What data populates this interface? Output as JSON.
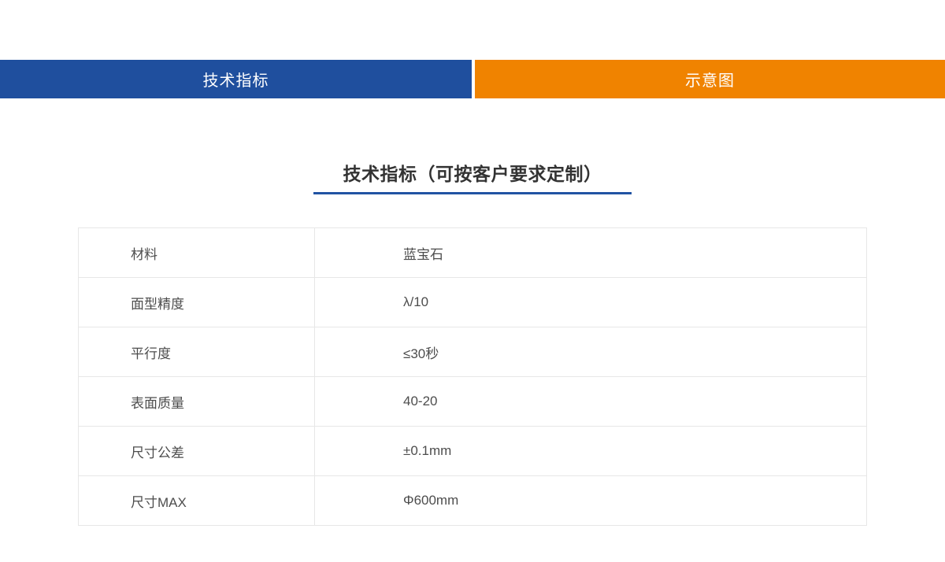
{
  "tab_bar": {
    "tabs": [
      {
        "label": "技术指标",
        "background": "#1f4f9e"
      },
      {
        "label": "示意图",
        "background": "#f08300"
      }
    ]
  },
  "section": {
    "title": "技术指标（可按客户要求定制）",
    "underline_color": "#2153a3"
  },
  "spec_table": {
    "rows": [
      {
        "label": "材料",
        "value": "蓝宝石"
      },
      {
        "label": "面型精度",
        "value": "λ/10"
      },
      {
        "label": "平行度",
        "value": "≤30秒"
      },
      {
        "label": "表面质量",
        "value": "40-20"
      },
      {
        "label": "尺寸公差",
        "value": "±0.1mm"
      },
      {
        "label": "尺寸MAX",
        "value": "Φ600mm"
      }
    ]
  }
}
